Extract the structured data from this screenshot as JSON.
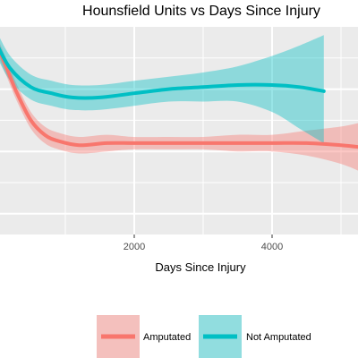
{
  "chart_data": {
    "type": "line",
    "title": "Hounsfield Units vs Days Since Injury",
    "xlabel": "Days Since Injury",
    "ylabel": "",
    "xlim": [
      0,
      5300
    ],
    "ylim": [
      0,
      100
    ],
    "x_ticks": [
      2000,
      4000
    ],
    "x_tick_labels": [
      "2000",
      "4000"
    ],
    "grid": true,
    "legend_position": "bottom",
    "series": [
      {
        "name": "Amputated",
        "color": "#F8766D",
        "fill_color": "#F8766D",
        "points": [
          {
            "x": 0,
            "y": 92,
            "lo": 88,
            "hi": 96
          },
          {
            "x": 150,
            "y": 80,
            "lo": 76,
            "hi": 84
          },
          {
            "x": 300,
            "y": 68,
            "lo": 64,
            "hi": 72
          },
          {
            "x": 500,
            "y": 55,
            "lo": 51,
            "hi": 59
          },
          {
            "x": 700,
            "y": 48,
            "lo": 44,
            "hi": 52
          },
          {
            "x": 900,
            "y": 45,
            "lo": 41,
            "hi": 49
          },
          {
            "x": 1200,
            "y": 43,
            "lo": 39,
            "hi": 47
          },
          {
            "x": 1600,
            "y": 44,
            "lo": 40,
            "hi": 48
          },
          {
            "x": 2000,
            "y": 44,
            "lo": 41,
            "hi": 47
          },
          {
            "x": 2500,
            "y": 44,
            "lo": 41,
            "hi": 47
          },
          {
            "x": 3000,
            "y": 44,
            "lo": 41,
            "hi": 47
          },
          {
            "x": 3500,
            "y": 44,
            "lo": 40,
            "hi": 48
          },
          {
            "x": 4000,
            "y": 44,
            "lo": 40,
            "hi": 48
          },
          {
            "x": 4500,
            "y": 44,
            "lo": 38,
            "hi": 50
          },
          {
            "x": 5000,
            "y": 43,
            "lo": 34,
            "hi": 52
          },
          {
            "x": 5300,
            "y": 42,
            "lo": 30,
            "hi": 54
          }
        ]
      },
      {
        "name": "Not Amputated",
        "color": "#00BFC4",
        "fill_color": "#00BFC4",
        "points": [
          {
            "x": 0,
            "y": 92,
            "lo": 86,
            "hi": 98
          },
          {
            "x": 200,
            "y": 80,
            "lo": 74,
            "hi": 86
          },
          {
            "x": 500,
            "y": 71,
            "lo": 65,
            "hi": 77
          },
          {
            "x": 800,
            "y": 68,
            "lo": 62,
            "hi": 74
          },
          {
            "x": 1100,
            "y": 66,
            "lo": 60,
            "hi": 72
          },
          {
            "x": 1500,
            "y": 66,
            "lo": 60,
            "hi": 72
          },
          {
            "x": 2000,
            "y": 68,
            "lo": 62,
            "hi": 74
          },
          {
            "x": 2500,
            "y": 70,
            "lo": 64,
            "hi": 76
          },
          {
            "x": 3000,
            "y": 71,
            "lo": 64,
            "hi": 78
          },
          {
            "x": 3500,
            "y": 72,
            "lo": 64,
            "hi": 81
          },
          {
            "x": 4000,
            "y": 72,
            "lo": 59,
            "hi": 86
          },
          {
            "x": 4400,
            "y": 71,
            "lo": 51,
            "hi": 91
          },
          {
            "x": 4750,
            "y": 69,
            "lo": 44,
            "hi": 96
          }
        ]
      }
    ]
  }
}
